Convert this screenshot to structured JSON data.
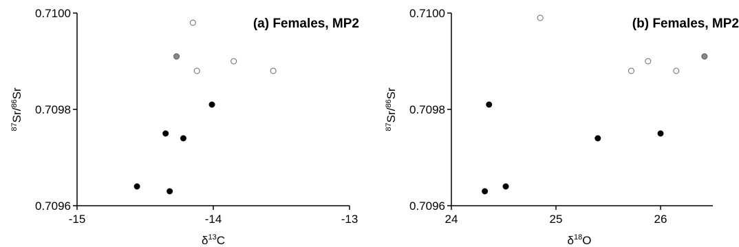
{
  "chart_data": [
    {
      "type": "scatter",
      "title": "(a) Females, MP2",
      "xlabel": {
        "prefix": "δ",
        "sup": "13",
        "main": "C"
      },
      "ylabel": {
        "sup1": "87",
        "main1": "Sr/",
        "sup2": "86",
        "main2": "Sr"
      },
      "xlim": [
        -15,
        -13
      ],
      "ylim": [
        0.7096,
        0.71
      ],
      "xticks": [
        -15,
        -14,
        -13
      ],
      "xtick_labels": [
        "-15",
        "-14",
        "-13"
      ],
      "yticks": [
        0.7096,
        0.7098,
        0.71
      ],
      "ytick_labels": [
        "0.7096",
        "0.7098",
        "0.7100"
      ],
      "colors": {
        "black": "#000000",
        "open": "#ffffff",
        "gray": "#888888"
      },
      "points": [
        {
          "x": -14.15,
          "y": 0.70998,
          "style": "open"
        },
        {
          "x": -14.27,
          "y": 0.70991,
          "style": "gray"
        },
        {
          "x": -14.12,
          "y": 0.70988,
          "style": "open"
        },
        {
          "x": -13.85,
          "y": 0.7099,
          "style": "open"
        },
        {
          "x": -13.56,
          "y": 0.70988,
          "style": "open"
        },
        {
          "x": -14.01,
          "y": 0.70981,
          "style": "black"
        },
        {
          "x": -14.35,
          "y": 0.70975,
          "style": "black"
        },
        {
          "x": -14.22,
          "y": 0.70974,
          "style": "black"
        },
        {
          "x": -14.56,
          "y": 0.70964,
          "style": "black"
        },
        {
          "x": -14.32,
          "y": 0.70963,
          "style": "black"
        }
      ]
    },
    {
      "type": "scatter",
      "title": "(b) Females, MP2",
      "xlabel": {
        "prefix": "δ",
        "sup": "18",
        "main": "O"
      },
      "ylabel": {
        "sup1": "87",
        "main1": "Sr/",
        "sup2": "86",
        "main2": "Sr"
      },
      "xlim": [
        24,
        26.5
      ],
      "ylim": [
        0.7096,
        0.71
      ],
      "xticks": [
        24,
        25,
        26
      ],
      "xtick_labels": [
        "24",
        "25",
        "26"
      ],
      "yticks": [
        0.7096,
        0.7098,
        0.71
      ],
      "ytick_labels": [
        "0.7096",
        "0.7098",
        "0.7100"
      ],
      "colors": {
        "black": "#000000",
        "open": "#ffffff",
        "gray": "#888888"
      },
      "points": [
        {
          "x": 24.85,
          "y": 0.70999,
          "style": "open"
        },
        {
          "x": 26.42,
          "y": 0.70991,
          "style": "gray"
        },
        {
          "x": 25.88,
          "y": 0.7099,
          "style": "open"
        },
        {
          "x": 26.15,
          "y": 0.70988,
          "style": "open"
        },
        {
          "x": 25.72,
          "y": 0.70988,
          "style": "open"
        },
        {
          "x": 24.36,
          "y": 0.70981,
          "style": "black"
        },
        {
          "x": 26.0,
          "y": 0.70975,
          "style": "black"
        },
        {
          "x": 25.4,
          "y": 0.70974,
          "style": "black"
        },
        {
          "x": 24.52,
          "y": 0.70964,
          "style": "black"
        },
        {
          "x": 24.32,
          "y": 0.70963,
          "style": "black"
        }
      ]
    }
  ]
}
